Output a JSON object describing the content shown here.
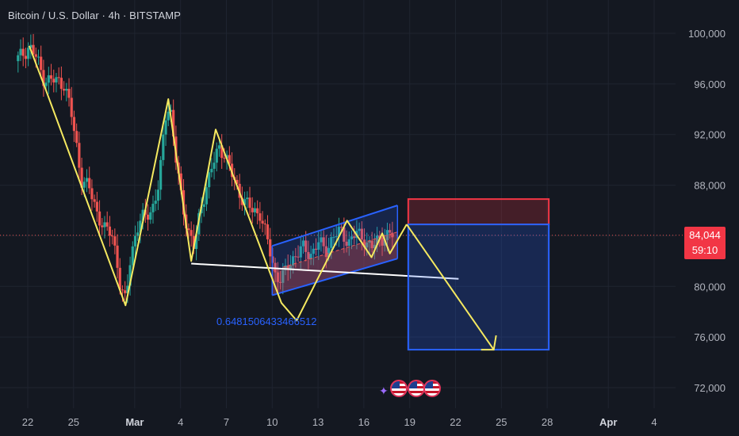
{
  "header": {
    "title": "Bitcoin / U.S. Dollar · 4h · BITSTAMP"
  },
  "price_tag": {
    "price": "84,044",
    "countdown": "59:10",
    "color": "#f23645"
  },
  "fib_label": "0.6481506433466512",
  "events": {
    "icon": "sparkle-icon",
    "flags": [
      "us-flag-icon",
      "us-flag-icon",
      "us-flag-icon"
    ]
  },
  "colors": {
    "background": "#141821",
    "bull": "#26a69a",
    "bear": "#ef5350",
    "zigzag": "#f5e960",
    "channel": "#2962ff",
    "projection": "#f5e960",
    "stop_zone": "#f23645",
    "target_zone": "#2962ff",
    "support": "#ffffff"
  },
  "chart_data": {
    "type": "candlestick",
    "symbol": "BTCUSD",
    "interval": "4h",
    "exchange": "BITSTAMP",
    "ylim": [
      70000,
      102000
    ],
    "y_ticks": [
      "100,000",
      "96,000",
      "92,000",
      "88,000",
      "84,000",
      "80,000",
      "76,000",
      "72,000"
    ],
    "y_tick_values": [
      100000,
      96000,
      92000,
      88000,
      84000,
      80000,
      76000,
      72000
    ],
    "x_ticks": [
      "22",
      "25",
      "Mar",
      "4",
      "7",
      "10",
      "13",
      "16",
      "19",
      "22",
      "25",
      "28",
      "Apr",
      "4"
    ],
    "x_tick_days": [
      -7,
      -4,
      0,
      3,
      6,
      9,
      12,
      15,
      18,
      21,
      24,
      27,
      31,
      34
    ],
    "x_domain_days": [
      -8,
      37
    ],
    "x_origin": "2025-03-01",
    "last_price": 84044,
    "price_path": [
      {
        "day": -7.8,
        "price": 97800
      },
      {
        "day": -7.2,
        "price": 98500
      },
      {
        "day": -6.9,
        "price": 99000
      },
      {
        "day": -6.4,
        "price": 98000
      },
      {
        "day": -6.0,
        "price": 96500
      },
      {
        "day": -5.6,
        "price": 96300
      },
      {
        "day": -5.0,
        "price": 96200
      },
      {
        "day": -4.6,
        "price": 96000
      },
      {
        "day": -4.2,
        "price": 94000
      },
      {
        "day": -3.8,
        "price": 91000
      },
      {
        "day": -3.5,
        "price": 88500
      },
      {
        "day": -3.0,
        "price": 87800
      },
      {
        "day": -2.5,
        "price": 86000
      },
      {
        "day": -2.0,
        "price": 84500
      },
      {
        "day": -1.5,
        "price": 84200
      },
      {
        "day": -1.2,
        "price": 82500
      },
      {
        "day": -0.9,
        "price": 79500
      },
      {
        "day": -0.6,
        "price": 78800
      },
      {
        "day": -0.3,
        "price": 82000
      },
      {
        "day": 0.1,
        "price": 84500
      },
      {
        "day": 0.6,
        "price": 85500
      },
      {
        "day": 1.1,
        "price": 86000
      },
      {
        "day": 1.6,
        "price": 88000
      },
      {
        "day": 2.0,
        "price": 93500
      },
      {
        "day": 2.3,
        "price": 94500
      },
      {
        "day": 2.7,
        "price": 90000
      },
      {
        "day": 3.1,
        "price": 86500
      },
      {
        "day": 3.5,
        "price": 84500
      },
      {
        "day": 3.9,
        "price": 83000
      },
      {
        "day": 4.3,
        "price": 86000
      },
      {
        "day": 4.7,
        "price": 88000
      },
      {
        "day": 5.1,
        "price": 89500
      },
      {
        "day": 5.5,
        "price": 91000
      },
      {
        "day": 5.9,
        "price": 90500
      },
      {
        "day": 6.3,
        "price": 89000
      },
      {
        "day": 6.8,
        "price": 87500
      },
      {
        "day": 7.2,
        "price": 86700
      },
      {
        "day": 7.7,
        "price": 86000
      },
      {
        "day": 8.2,
        "price": 85800
      },
      {
        "day": 8.7,
        "price": 83500
      },
      {
        "day": 9.2,
        "price": 81000
      },
      {
        "day": 9.6,
        "price": 80500
      },
      {
        "day": 10.0,
        "price": 81500
      },
      {
        "day": 10.5,
        "price": 82500
      },
      {
        "day": 11.0,
        "price": 83000
      },
      {
        "day": 11.5,
        "price": 82500
      },
      {
        "day": 12.0,
        "price": 83500
      },
      {
        "day": 12.5,
        "price": 82800
      },
      {
        "day": 13.0,
        "price": 84000
      },
      {
        "day": 13.5,
        "price": 84300
      },
      {
        "day": 14.0,
        "price": 83500
      },
      {
        "day": 14.5,
        "price": 84200
      },
      {
        "day": 15.0,
        "price": 83800
      },
      {
        "day": 15.5,
        "price": 83000
      },
      {
        "day": 16.0,
        "price": 83800
      },
      {
        "day": 16.5,
        "price": 84000
      },
      {
        "day": 16.9,
        "price": 84044
      }
    ],
    "zigzag": [
      {
        "day": -6.9,
        "price": 99000
      },
      {
        "day": -5.9,
        "price": 95800
      },
      {
        "day": -0.6,
        "price": 78500
      },
      {
        "day": 2.2,
        "price": 94800
      },
      {
        "day": 3.7,
        "price": 82000
      },
      {
        "day": 5.3,
        "price": 92400
      },
      {
        "day": 9.6,
        "price": 78700
      },
      {
        "day": 10.6,
        "price": 77300
      },
      {
        "day": 13.9,
        "price": 85200
      },
      {
        "day": 15.5,
        "price": 82300
      },
      {
        "day": 16.2,
        "price": 84200
      },
      {
        "day": 16.7,
        "price": 82600
      },
      {
        "day": 17.8,
        "price": 84900
      }
    ],
    "channel": {
      "upper": [
        {
          "day": 9.0,
          "price": 83200
        },
        {
          "day": 17.2,
          "price": 86400
        }
      ],
      "lower": [
        {
          "day": 9.0,
          "price": 79300
        },
        {
          "day": 17.2,
          "price": 82200
        }
      ]
    },
    "support_line": [
      {
        "day": 3.7,
        "price": 81800
      },
      {
        "day": 21.2,
        "price": 80600
      }
    ],
    "projection": [
      {
        "day": 17.8,
        "price": 84900
      },
      {
        "day": 23.5,
        "price": 75000
      }
    ],
    "position": {
      "entry": 84900,
      "stop": 86900,
      "target": 75000,
      "start_day": 17.8,
      "end_day": 27.0
    }
  }
}
